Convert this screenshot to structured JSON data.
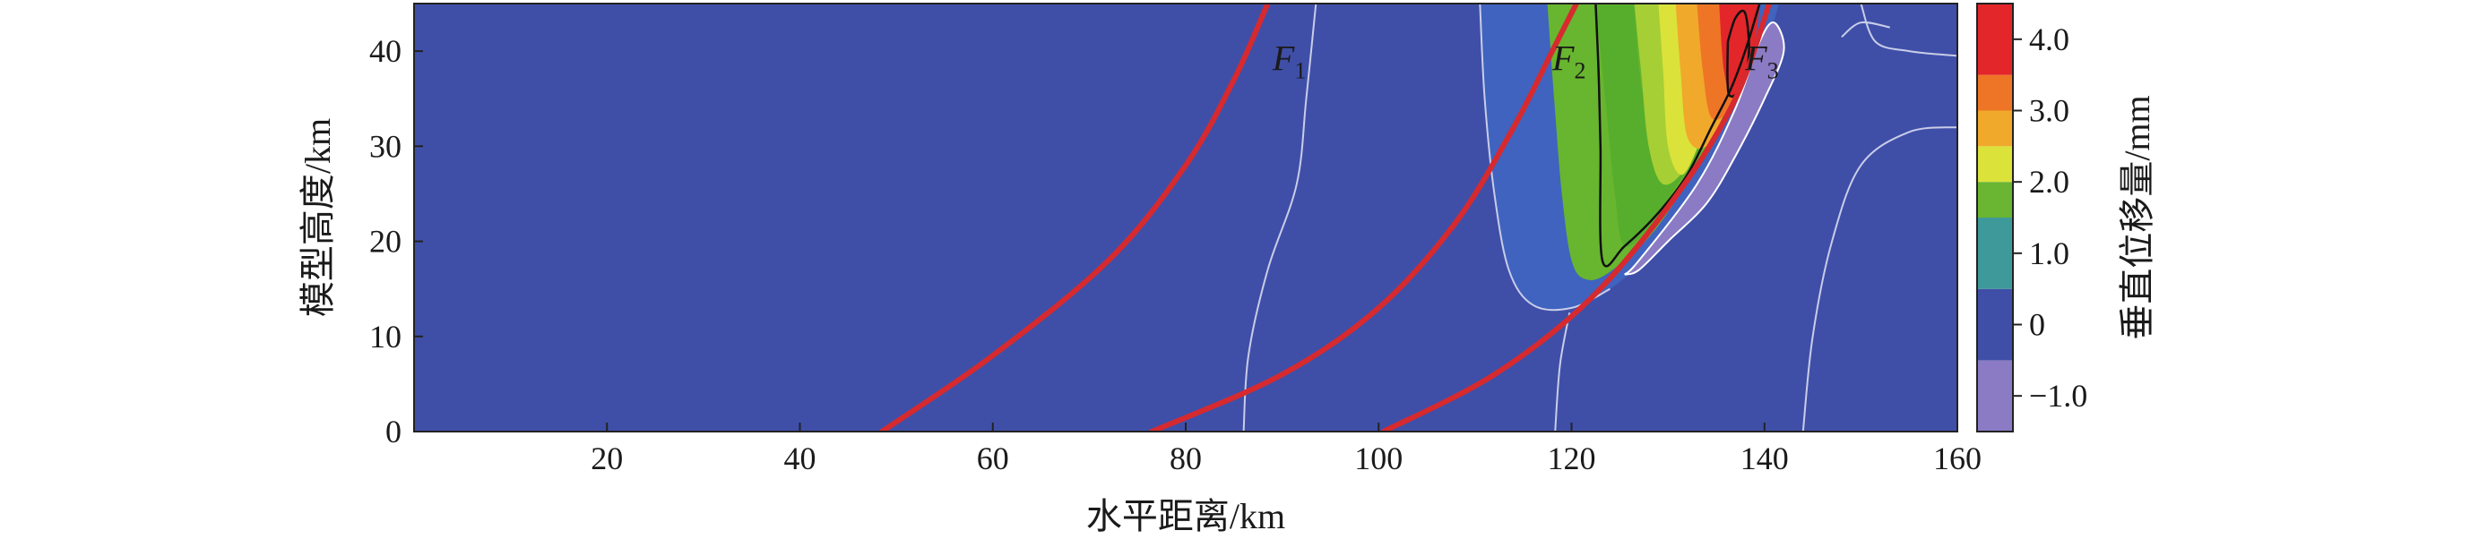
{
  "chart_data": {
    "type": "heatmap",
    "xlabel": "水平距离/km",
    "ylabel": "模型高度/km",
    "x_ticks": [
      "20",
      "40",
      "60",
      "80",
      "100",
      "120",
      "140",
      "160"
    ],
    "y_ticks": [
      "0",
      "10",
      "20",
      "30",
      "40"
    ],
    "xlim": [
      0,
      160
    ],
    "ylim": [
      0,
      45
    ],
    "colorbar": {
      "label": "垂直位移量/mm",
      "range": [
        -1.5,
        4.5
      ],
      "ticks": [
        "4.0",
        "3.0",
        "2.0",
        "1.0",
        "0",
        "−1.0"
      ],
      "tick_values": [
        4.0,
        3.0,
        2.0,
        1.0,
        0,
        -1.0
      ],
      "bands": [
        {
          "from": -1.5,
          "to": -0.5,
          "color": "#8a7bc4"
        },
        {
          "from": -0.5,
          "to": 0.5,
          "color": "#3f4fa8"
        },
        {
          "from": 0.5,
          "to": 1.5,
          "color": "#3e9a9a"
        },
        {
          "from": 1.5,
          "to": 2.0,
          "color": "#6ab531"
        },
        {
          "from": 2.0,
          "to": 2.5,
          "color": "#dbe23a"
        },
        {
          "from": 2.5,
          "to": 3.0,
          "color": "#f0a92a"
        },
        {
          "from": 3.0,
          "to": 3.5,
          "color": "#ee7526"
        },
        {
          "from": 3.5,
          "to": 4.5,
          "color": "#e3262a"
        }
      ]
    },
    "background_color": "#3f4fa8",
    "faults": [
      {
        "name": "F",
        "sub": "1",
        "color": "#d62a2f",
        "points": [
          [
            48.5,
            0
          ],
          [
            60,
            8
          ],
          [
            72,
            18
          ],
          [
            80,
            28
          ],
          [
            85,
            37
          ],
          [
            88.5,
            45
          ]
        ],
        "label_at": [
          89,
          38
        ]
      },
      {
        "name": "F",
        "sub": "2",
        "color": "#d62a2f",
        "points": [
          [
            76.5,
            0
          ],
          [
            90,
            6
          ],
          [
            100,
            13
          ],
          [
            108,
            22
          ],
          [
            114,
            32
          ],
          [
            118,
            40
          ],
          [
            120.5,
            45
          ]
        ],
        "label_at": [
          118,
          38
        ]
      },
      {
        "name": "F",
        "sub": "3",
        "color": "#d62a2f",
        "points": [
          [
            100.5,
            0
          ],
          [
            112,
            6
          ],
          [
            122,
            14
          ],
          [
            131,
            25
          ],
          [
            137,
            35
          ],
          [
            140.5,
            45
          ]
        ],
        "label_at": [
          138,
          38
        ]
      }
    ],
    "regions": [
      {
        "value": 0.25,
        "color": "#3852b0",
        "points": [
          [
            110.5,
            45
          ],
          [
            112,
            35
          ],
          [
            113,
            25
          ],
          [
            114.5,
            17
          ],
          [
            117,
            13.5
          ],
          [
            121,
            13
          ],
          [
            124,
            14.5
          ],
          [
            122,
            14
          ],
          [
            118,
            16
          ],
          [
            117,
            22
          ],
          [
            117.5,
            32
          ],
          [
            118.5,
            45
          ]
        ]
      },
      {
        "value": 0.6,
        "color": "#3f63bf",
        "points": [
          [
            110.5,
            45
          ],
          [
            111,
            35
          ],
          [
            112,
            25
          ],
          [
            113.5,
            17
          ],
          [
            116,
            13.3
          ],
          [
            120,
            13
          ],
          [
            124,
            15
          ],
          [
            128.5,
            19
          ],
          [
            133,
            25
          ],
          [
            137,
            33
          ],
          [
            140,
            40
          ],
          [
            141.5,
            45
          ]
        ]
      },
      {
        "value": 1.6,
        "color": "#68b52f",
        "points": [
          [
            117.5,
            45
          ],
          [
            118.2,
            35
          ],
          [
            119,
            25
          ],
          [
            120,
            18
          ],
          [
            121.5,
            16
          ],
          [
            124,
            16.8
          ],
          [
            128.5,
            21
          ],
          [
            133,
            28
          ],
          [
            137,
            36
          ],
          [
            139.5,
            45
          ]
        ]
      },
      {
        "value": 1.9,
        "color": "#57ae2c",
        "points": [
          [
            122.5,
            45
          ],
          [
            123.5,
            35
          ],
          [
            124.5,
            25
          ],
          [
            125.5,
            19.5
          ],
          [
            128.5,
            22
          ],
          [
            131,
            26
          ],
          [
            133.5,
            30
          ],
          [
            130,
            30
          ],
          [
            127.5,
            35
          ],
          [
            126.5,
            45
          ]
        ]
      },
      {
        "value": 2.2,
        "color": "#a6cf35",
        "points": [
          [
            126.5,
            45
          ],
          [
            127.2,
            38
          ],
          [
            128,
            30
          ],
          [
            129.5,
            26
          ],
          [
            132,
            28
          ],
          [
            133.5,
            33
          ],
          [
            133,
            45
          ]
        ]
      },
      {
        "value": 2.5,
        "color": "#dbe23a",
        "points": [
          [
            129,
            45
          ],
          [
            129.5,
            38
          ],
          [
            130,
            30
          ],
          [
            131.5,
            27
          ],
          [
            133.5,
            31
          ],
          [
            135,
            36
          ],
          [
            135.5,
            45
          ]
        ]
      },
      {
        "value": 2.8,
        "color": "#f0a92a",
        "points": [
          [
            130.8,
            45
          ],
          [
            131.3,
            38
          ],
          [
            132,
            31
          ],
          [
            134,
            30
          ],
          [
            136,
            34
          ],
          [
            137,
            38
          ],
          [
            137.5,
            45
          ]
        ]
      },
      {
        "value": 3.3,
        "color": "#ee7526",
        "points": [
          [
            133,
            45
          ],
          [
            133.6,
            38
          ],
          [
            134.5,
            33
          ],
          [
            136.5,
            34
          ],
          [
            138,
            38
          ],
          [
            139,
            45
          ]
        ]
      },
      {
        "value": 3.9,
        "color": "#e3262a",
        "points": [
          [
            135.3,
            45
          ],
          [
            135.8,
            38
          ],
          [
            136.8,
            35
          ],
          [
            138.3,
            38
          ],
          [
            139.2,
            42
          ],
          [
            139.5,
            45
          ]
        ]
      },
      {
        "value": -0.9,
        "color": "#8a7bc4",
        "points": [
          [
            125.5,
            16.5
          ],
          [
            127,
            18
          ],
          [
            133,
            26
          ],
          [
            137,
            34
          ],
          [
            139.5,
            41
          ],
          [
            141,
            43
          ],
          [
            142,
            40
          ],
          [
            140,
            35
          ],
          [
            137,
            29
          ],
          [
            134,
            24
          ],
          [
            130,
            20
          ],
          [
            127,
            17
          ],
          [
            125.5,
            16.5
          ]
        ]
      }
    ],
    "contour_lines": [
      {
        "color": "#c9cde8",
        "points": [
          [
            86,
            0
          ],
          [
            86.5,
            8
          ],
          [
            88.5,
            17
          ],
          [
            91.5,
            26
          ],
          [
            92.5,
            35
          ],
          [
            93.5,
            45
          ]
        ]
      },
      {
        "color": "#c9cde8",
        "points": [
          [
            118.3,
            0
          ],
          [
            118.8,
            7
          ],
          [
            119.8,
            12.5
          ]
        ]
      },
      {
        "color": "#c9cde8",
        "points": [
          [
            110.5,
            45
          ],
          [
            111,
            35
          ],
          [
            112,
            25
          ],
          [
            113.5,
            17
          ],
          [
            116,
            13.3
          ],
          [
            120,
            13
          ],
          [
            124,
            15
          ]
        ]
      },
      {
        "color": "#c9cde8",
        "points": [
          [
            144,
            0
          ],
          [
            145,
            10
          ],
          [
            147,
            20
          ],
          [
            150,
            28
          ],
          [
            155,
            31.5
          ],
          [
            160,
            32
          ]
        ]
      },
      {
        "color": "#c9cde8",
        "points": [
          [
            150,
            45
          ],
          [
            151.5,
            41
          ],
          [
            155,
            40
          ],
          [
            160,
            39.5
          ]
        ]
      },
      {
        "color": "#c9cde8",
        "points": [
          [
            148,
            41.5
          ],
          [
            150,
            43
          ],
          [
            153,
            42.5
          ]
        ]
      },
      {
        "color": "#ffffff",
        "points": [
          [
            125.5,
            16.5
          ],
          [
            127,
            18
          ],
          [
            133,
            26
          ],
          [
            137,
            34
          ],
          [
            139.5,
            41
          ],
          [
            141,
            43
          ],
          [
            142,
            40
          ],
          [
            140,
            35
          ],
          [
            137,
            29
          ],
          [
            134,
            24
          ],
          [
            130,
            20
          ],
          [
            127,
            17
          ],
          [
            125.5,
            16.5
          ]
        ]
      }
    ],
    "black_contours": [
      {
        "points": [
          [
            122.5,
            45
          ],
          [
            122.8,
            38
          ],
          [
            123,
            30
          ],
          [
            123.2,
            18
          ],
          [
            125.5,
            19.5
          ],
          [
            129,
            23
          ],
          [
            132,
            27
          ],
          [
            134.5,
            32
          ],
          [
            136.5,
            36
          ],
          [
            138,
            40
          ],
          [
            139.5,
            45
          ]
        ]
      },
      {
        "points": [
          [
            136.2,
            41
          ],
          [
            137,
            43.5
          ],
          [
            138,
            44
          ],
          [
            138.4,
            40
          ],
          [
            137.8,
            36.5
          ],
          [
            136.3,
            35.5
          ],
          [
            136.2,
            41
          ]
        ]
      }
    ]
  }
}
